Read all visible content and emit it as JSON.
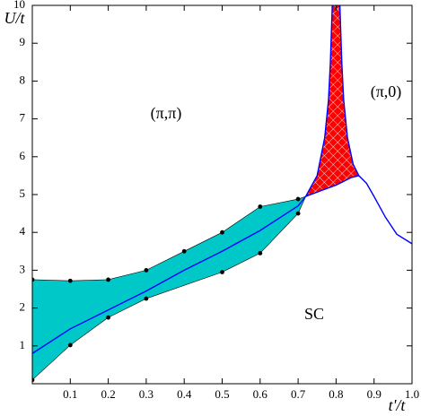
{
  "chart_data": {
    "type": "line",
    "x_label": "t'/t",
    "y_label": "U/t",
    "annotations": [
      "(π,π)",
      "(π,0)",
      "SC"
    ],
    "xlim": [
      0,
      1
    ],
    "ylim": [
      0,
      10
    ],
    "xticks": [
      0.1,
      0.2,
      0.3,
      0.4,
      0.5,
      0.6,
      0.7,
      0.8,
      0.9,
      {
        "value": 1,
        "label": "1.0"
      }
    ],
    "yticks": [
      1,
      2,
      3,
      4,
      5,
      6,
      7,
      8,
      9,
      10
    ],
    "areas": [
      {
        "color": "#00c8c8",
        "x": [
          0,
          0.1,
          0.2,
          0.3,
          0.4,
          0.5,
          0.6,
          0.7,
          0.72,
          0.7,
          0.6,
          0.5,
          0.3,
          0.2,
          0.1,
          0
        ],
        "y": [
          2.75,
          2.72,
          2.75,
          3.0,
          3.5,
          4.0,
          4.68,
          4.88,
          4.95,
          4.5,
          3.45,
          2.95,
          2.25,
          1.75,
          1.02,
          0.1
        ]
      },
      {
        "color": "#ff0000",
        "hatch": true,
        "x": [
          0.72,
          0.75,
          0.77,
          0.78,
          0.785,
          0.79,
          0.81,
          0.815,
          0.82,
          0.83,
          0.845,
          0.86,
          0.84,
          0.8,
          0.76
        ],
        "y": [
          4.95,
          5.5,
          6.5,
          7.5,
          8.5,
          10,
          10,
          8.5,
          7.5,
          6.5,
          5.8,
          5.5,
          5.45,
          5.25,
          5.1
        ]
      }
    ],
    "series": [
      {
        "color": "#000000",
        "marker": "dot",
        "x": [
          0,
          0.1,
          0.2,
          0.3,
          0.4,
          0.5,
          0.6,
          0.7
        ],
        "values": [
          2.75,
          2.72,
          2.75,
          3.0,
          3.5,
          4.0,
          4.68,
          4.88
        ]
      },
      {
        "color": "#000000",
        "marker": "dot",
        "x": [
          0,
          0.1,
          0.2,
          0.3,
          0.5,
          0.6,
          0.7
        ],
        "values": [
          0.1,
          1.02,
          1.75,
          2.25,
          2.95,
          3.45,
          4.5
        ]
      },
      {
        "color": "#0000ff",
        "x": [
          0,
          0.1,
          0.2,
          0.3,
          0.4,
          0.5,
          0.6,
          0.7,
          0.72
        ],
        "values": [
          0.8,
          1.45,
          1.95,
          2.45,
          3.0,
          3.5,
          4.05,
          4.7,
          4.95
        ]
      },
      {
        "color": "#0000ff",
        "x": [
          0.72,
          0.75,
          0.77,
          0.78,
          0.785,
          0.79
        ],
        "values": [
          4.95,
          5.5,
          6.5,
          7.5,
          8.5,
          10
        ]
      },
      {
        "color": "#0000ff",
        "x": [
          0.81,
          0.815,
          0.82,
          0.83,
          0.845,
          0.86,
          0.88,
          0.9,
          0.93,
          0.96,
          1.0
        ],
        "values": [
          10,
          8.5,
          7.5,
          6.5,
          5.8,
          5.5,
          5.3,
          4.95,
          4.4,
          3.95,
          3.7
        ]
      },
      {
        "color": "#0000ff",
        "x": [
          0.72,
          0.76,
          0.8,
          0.84,
          0.86
        ],
        "values": [
          4.95,
          5.1,
          5.25,
          5.45,
          5.5
        ]
      }
    ]
  }
}
